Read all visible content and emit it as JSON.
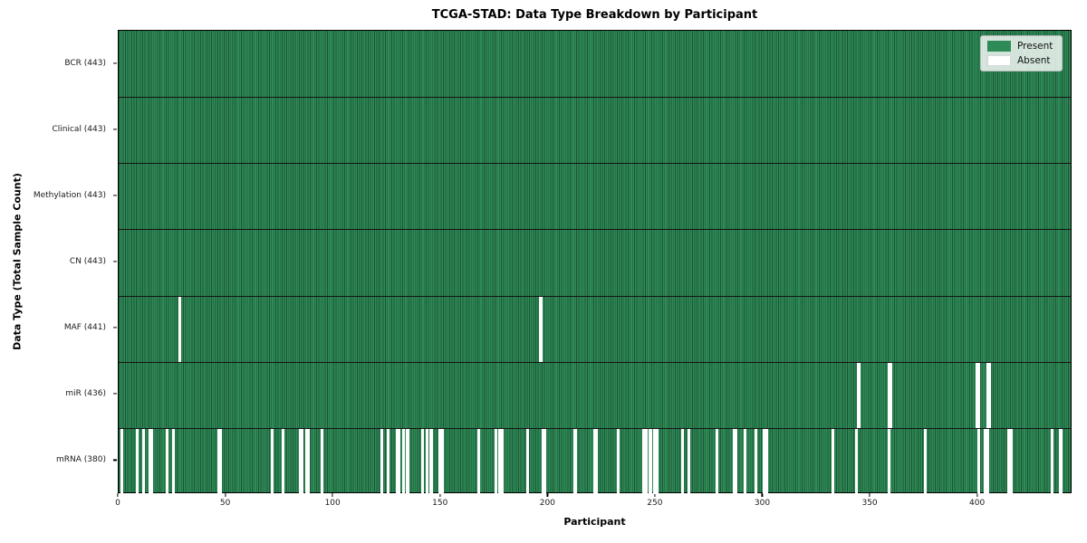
{
  "window": {
    "title": "TCGA-STAD: Data Type Breakdown by Participant"
  },
  "chart_data": {
    "type": "heatmap",
    "title": "TCGA-STAD: Data Type Breakdown by Participant",
    "xlabel": "Participant",
    "ylabel": "Data Type (Total Sample Count)",
    "x_ticks": [
      0,
      50,
      100,
      150,
      200,
      250,
      300,
      350,
      400
    ],
    "n_participants": 443,
    "xlim": [
      0,
      444
    ],
    "grid": false,
    "legend_position": "upper right",
    "legend": [
      {
        "label": "Present",
        "color": "#2e8b57"
      },
      {
        "label": "Absent",
        "color": "#ffffff"
      }
    ],
    "colors": {
      "present_fill": "#2e8b57",
      "cell_edge": "#1c5434",
      "absent_fill": "#ffffff",
      "separator": "#141414"
    },
    "rows": [
      {
        "label": "BCR (443)",
        "data_type": "BCR",
        "present_count": 443,
        "absent_participants": []
      },
      {
        "label": "Clinical (443)",
        "data_type": "Clinical",
        "present_count": 443,
        "absent_participants": []
      },
      {
        "label": "Methylation (443)",
        "data_type": "Methylation",
        "present_count": 443,
        "absent_participants": []
      },
      {
        "label": "CN (443)",
        "data_type": "CN",
        "present_count": 443,
        "absent_participants": []
      },
      {
        "label": "MAF (441)",
        "data_type": "MAF",
        "present_count": 441,
        "absent_participants": [
          28,
          196
        ]
      },
      {
        "label": "miR (436)",
        "data_type": "miR",
        "present_count": 436,
        "absent_participants": [
          344,
          358,
          359,
          399,
          400,
          404,
          405
        ]
      },
      {
        "label": "mRNA (380)",
        "data_type": "mRNA",
        "present_count": 380,
        "absent_participants": [
          1,
          8,
          11,
          14,
          15,
          22,
          25,
          46,
          47,
          71,
          76,
          84,
          85,
          87,
          88,
          94,
          122,
          125,
          129,
          130,
          132,
          134,
          141,
          143,
          145,
          149,
          150,
          167,
          175,
          177,
          178,
          190,
          197,
          198,
          212,
          221,
          222,
          232,
          244,
          245,
          247,
          249,
          250,
          262,
          265,
          278,
          286,
          287,
          291,
          296,
          300,
          301,
          332,
          343,
          358,
          375,
          400,
          403,
          404,
          414,
          415,
          434,
          438
        ]
      }
    ]
  }
}
